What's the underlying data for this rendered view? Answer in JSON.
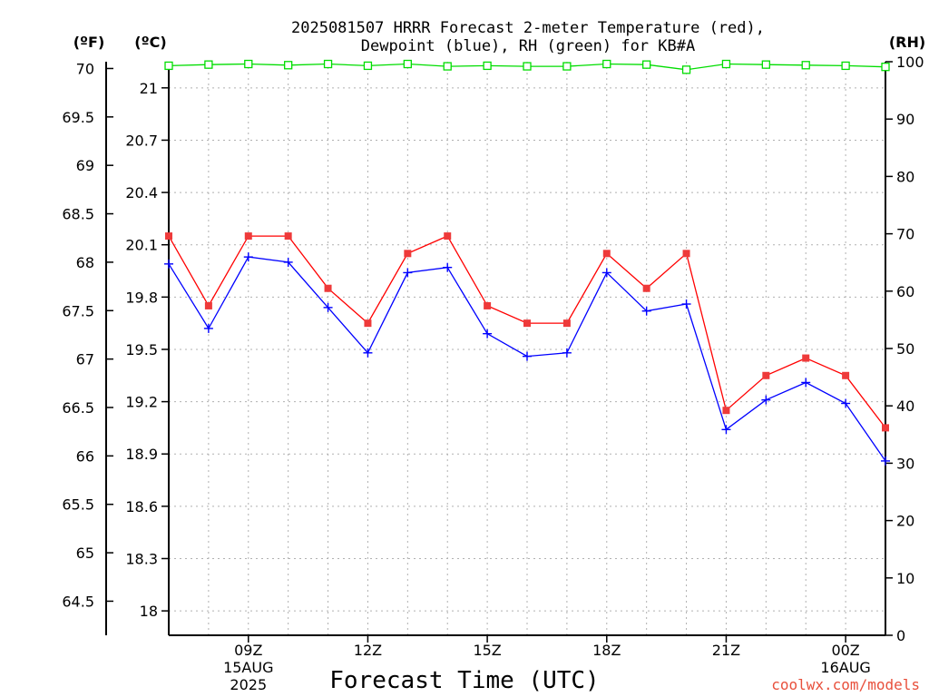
{
  "chart_data": {
    "type": "line",
    "title": [
      "2025081507 HRRR Forecast 2-meter Temperature (red),",
      "Dewpoint (blue), RH (green) for KB#A"
    ],
    "xlabel": "Forecast Time (UTC)",
    "credit": "coolwx.com/models",
    "units": {
      "fahrenheit": "(ºF)",
      "celsius": "(ºC)",
      "rh": "(RH)"
    },
    "x_hours": [
      7,
      8,
      9,
      10,
      11,
      12,
      13,
      14,
      15,
      16,
      17,
      18,
      19,
      20,
      21,
      22,
      23,
      24,
      25
    ],
    "x_ticks": [
      {
        "hour": 9,
        "label": "09Z",
        "sub": [
          "15AUG",
          "2025"
        ]
      },
      {
        "hour": 12,
        "label": "12Z",
        "sub": []
      },
      {
        "hour": 15,
        "label": "15Z",
        "sub": []
      },
      {
        "hour": 18,
        "label": "18Z",
        "sub": []
      },
      {
        "hour": 21,
        "label": "21Z",
        "sub": []
      },
      {
        "hour": 24,
        "label": "00Z",
        "sub": [
          "16AUG"
        ]
      }
    ],
    "x_range": [
      7,
      25
    ],
    "celsius_ticks": [
      "18",
      "18.3",
      "18.6",
      "18.9",
      "19.2",
      "19.5",
      "19.8",
      "20.1",
      "20.4",
      "20.7",
      "21"
    ],
    "celsius_range": [
      17.86,
      21.15
    ],
    "fahrenheit_ticks": [
      "64.5",
      "65",
      "65.5",
      "66",
      "66.5",
      "67",
      "67.5",
      "68",
      "68.5",
      "69",
      "69.5",
      "70"
    ],
    "rh_ticks": [
      "0",
      "10",
      "20",
      "30",
      "40",
      "50",
      "60",
      "70",
      "80",
      "90",
      "100"
    ],
    "rh_range": [
      0,
      100
    ],
    "grid": true,
    "series": [
      {
        "name": "Temperature",
        "unit": "C",
        "color": "#ff0000",
        "marker": "filled-square",
        "values": [
          20.15,
          19.75,
          20.15,
          20.15,
          19.85,
          19.65,
          20.05,
          20.15,
          19.75,
          19.65,
          19.65,
          20.05,
          19.85,
          20.05,
          19.15,
          19.35,
          19.45,
          19.35,
          19.05
        ]
      },
      {
        "name": "Dewpoint",
        "unit": "C",
        "color": "#0000ff",
        "marker": "plus",
        "values": [
          19.99,
          19.62,
          20.03,
          20.0,
          19.74,
          19.48,
          19.94,
          19.97,
          19.59,
          19.46,
          19.48,
          19.94,
          19.72,
          19.76,
          19.04,
          19.21,
          19.31,
          19.19,
          18.86
        ]
      },
      {
        "name": "RH",
        "unit": "%",
        "color": "#00dd00",
        "marker": "open-square",
        "values": [
          99.3,
          99.5,
          99.6,
          99.4,
          99.6,
          99.3,
          99.6,
          99.2,
          99.3,
          99.2,
          99.2,
          99.6,
          99.5,
          98.6,
          99.6,
          99.5,
          99.4,
          99.3,
          99.1
        ]
      }
    ]
  }
}
